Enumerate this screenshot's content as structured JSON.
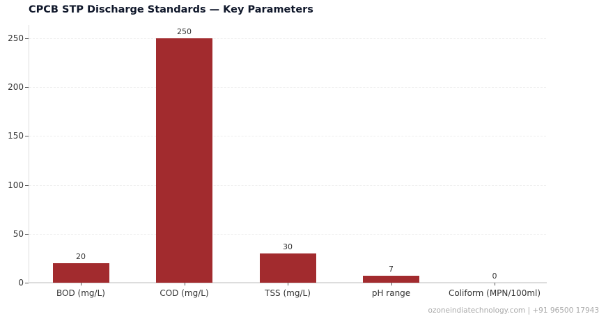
{
  "chart_data": {
    "type": "bar",
    "title": "CPCB STP Discharge Standards — Key Parameters",
    "categories": [
      "BOD (mg/L)",
      "COD (mg/L)",
      "TSS (mg/L)",
      "pH range",
      "Coliform (MPN/100ml)"
    ],
    "values": [
      20,
      250,
      30,
      7,
      0
    ],
    "data_labels": [
      "20",
      "250",
      "30",
      "7",
      "0"
    ],
    "xlabel": "",
    "ylabel": "",
    "ylim": [
      0,
      262
    ],
    "yticks": [
      0,
      50,
      100,
      150,
      200,
      250
    ],
    "grid": "horizontal dashed",
    "legend": null,
    "bar_color": "#a22b2e"
  },
  "footer": "ozoneindiatechnology.com | +91 96500 17943"
}
